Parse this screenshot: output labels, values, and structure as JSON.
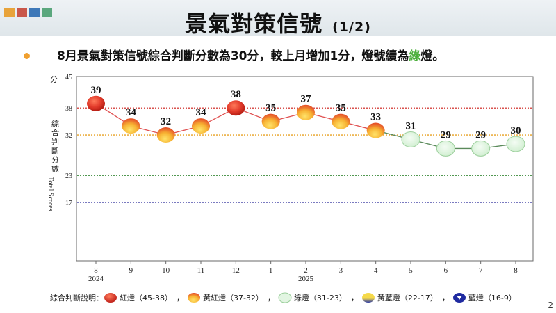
{
  "header": {
    "title": "景氣對策信號",
    "page_indicator": "(1/2)",
    "accent_colors": [
      "#e8a33a",
      "#c9574a",
      "#3d78b8",
      "#5aa77d"
    ]
  },
  "summary": {
    "prefix": "8月景氣對策信號綜合判斷分數為30分，較上月增加1分，燈號續為",
    "highlight": "綠",
    "suffix": "燈。"
  },
  "chart_data": {
    "type": "line",
    "title": "",
    "ylabel_unit": "分",
    "ylabel_zh": "綜合判斷分數",
    "ylabel_en": "Total Scores",
    "y_ticks": [
      45,
      38,
      32,
      23,
      17
    ],
    "ylim": [
      4,
      45
    ],
    "categories": [
      "8",
      "9",
      "10",
      "11",
      "12",
      "1",
      "2",
      "3",
      "4",
      "5",
      "6",
      "7",
      "8"
    ],
    "year_labels": [
      {
        "index": 0,
        "label": "2024"
      },
      {
        "index": 6,
        "label": "2025"
      }
    ],
    "series": [
      {
        "name": "綜合判斷分數",
        "values": [
          39,
          34,
          32,
          34,
          38,
          35,
          37,
          35,
          33,
          31,
          29,
          29,
          30
        ]
      }
    ],
    "point_signals": [
      "red",
      "yellow-red",
      "yellow-red",
      "yellow-red",
      "red",
      "yellow-red",
      "yellow-red",
      "yellow-red",
      "yellow-red",
      "green",
      "green",
      "green",
      "green"
    ],
    "thresholds": [
      {
        "value": 38,
        "color": "#d9534f"
      },
      {
        "value": 32,
        "color": "#e8a020"
      },
      {
        "value": 23,
        "color": "#3a8a3a"
      },
      {
        "value": 17,
        "color": "#2a2a9a"
      }
    ]
  },
  "legend": {
    "title": "綜合判斷說明：",
    "items": [
      {
        "label": "紅燈（45-38）",
        "signal": "red"
      },
      {
        "label": "黃紅燈（37-32）",
        "signal": "yellow-red"
      },
      {
        "label": "綠燈（31-23）",
        "signal": "green"
      },
      {
        "label": "黃藍燈（22-17）",
        "signal": "yellow-blue"
      },
      {
        "label": "藍燈（16-9）",
        "signal": "blue"
      }
    ],
    "separator": "，"
  },
  "page_number": "2",
  "colors": {
    "red": "#e23a2a",
    "yellow_red": "#f5a623",
    "green": "#dff3df",
    "line_red": "#e05050",
    "line_green": "#5a8a5a"
  }
}
